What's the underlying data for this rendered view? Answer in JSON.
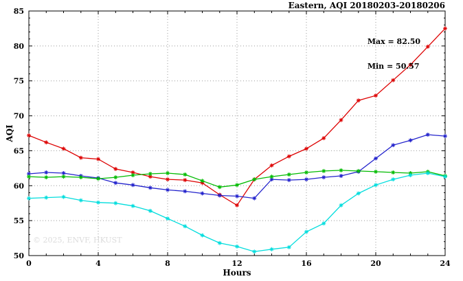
{
  "chart_data": {
    "type": "line",
    "title": "Eastern, AQI 20180203-20180206",
    "xlabel": "Hours",
    "ylabel": "AQI",
    "annotations": [
      "Max = 82.50",
      "Min = 50.57"
    ],
    "watermark": "© 2025, ENVF, HKUST",
    "xlim": [
      0,
      24
    ],
    "ylim": [
      50,
      85
    ],
    "x_ticks": [
      0,
      4,
      8,
      12,
      16,
      20,
      24
    ],
    "y_ticks": [
      50,
      55,
      60,
      65,
      70,
      75,
      80,
      85
    ],
    "grid": true,
    "legend_position": "none",
    "marker": "asterisk",
    "x": [
      0,
      1,
      2,
      3,
      4,
      5,
      6,
      7,
      8,
      9,
      10,
      11,
      12,
      13,
      14,
      15,
      16,
      17,
      18,
      19,
      20,
      21,
      22,
      23,
      24
    ],
    "series": [
      {
        "name": "red",
        "color": "#dd0000",
        "values": [
          67.2,
          66.2,
          65.3,
          64.0,
          63.8,
          62.4,
          61.9,
          61.3,
          60.9,
          60.8,
          60.4,
          58.7,
          57.2,
          60.9,
          62.9,
          64.2,
          65.3,
          66.8,
          69.4,
          72.2,
          72.9,
          75.1,
          77.3,
          79.9,
          82.5
        ]
      },
      {
        "name": "blue",
        "color": "#2222cc",
        "values": [
          61.7,
          61.9,
          61.8,
          61.4,
          61.1,
          60.4,
          60.1,
          59.7,
          59.4,
          59.2,
          58.9,
          58.6,
          58.5,
          58.2,
          60.9,
          60.8,
          60.9,
          61.2,
          61.4,
          62.0,
          63.9,
          65.8,
          66.5,
          67.3,
          67.1
        ]
      },
      {
        "name": "green",
        "color": "#00bb00",
        "values": [
          61.3,
          61.2,
          61.3,
          61.2,
          61.0,
          61.2,
          61.5,
          61.7,
          61.8,
          61.6,
          60.7,
          59.8,
          60.1,
          60.9,
          61.3,
          61.6,
          61.9,
          62.1,
          62.2,
          62.1,
          62.0,
          61.9,
          61.8,
          62.0,
          61.4
        ]
      },
      {
        "name": "cyan",
        "color": "#00dddd",
        "values": [
          58.2,
          58.3,
          58.4,
          57.9,
          57.6,
          57.5,
          57.1,
          56.4,
          55.3,
          54.2,
          52.9,
          51.8,
          51.3,
          50.57,
          50.9,
          51.2,
          53.4,
          54.6,
          57.2,
          58.9,
          60.1,
          60.9,
          61.5,
          61.8,
          61.3
        ]
      }
    ]
  }
}
